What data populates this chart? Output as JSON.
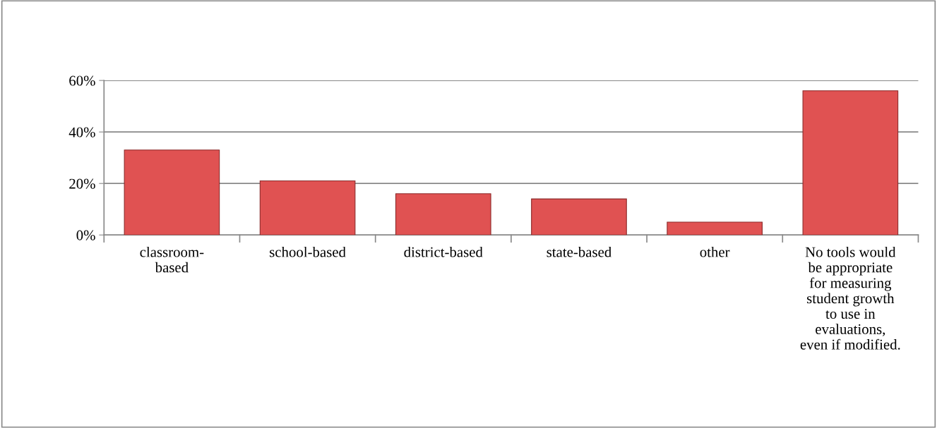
{
  "chart_data": {
    "type": "bar",
    "categories": [
      "classroom-\nbased",
      "school-based",
      "district-based",
      "state-based",
      "other",
      "No tools would\nbe appropriate\nfor measuring\nstudent growth\nto use in\nevaluations,\neven if modified."
    ],
    "values": [
      33,
      21,
      16,
      14,
      5,
      56
    ],
    "color": "#e05252",
    "ylim": [
      0,
      60
    ],
    "yticks": [
      {
        "value": 0,
        "label": "0%"
      },
      {
        "value": 20,
        "label": "20%"
      },
      {
        "value": 40,
        "label": "40%"
      },
      {
        "value": 60,
        "label": "60%"
      }
    ],
    "grid": "y",
    "legend": false
  }
}
